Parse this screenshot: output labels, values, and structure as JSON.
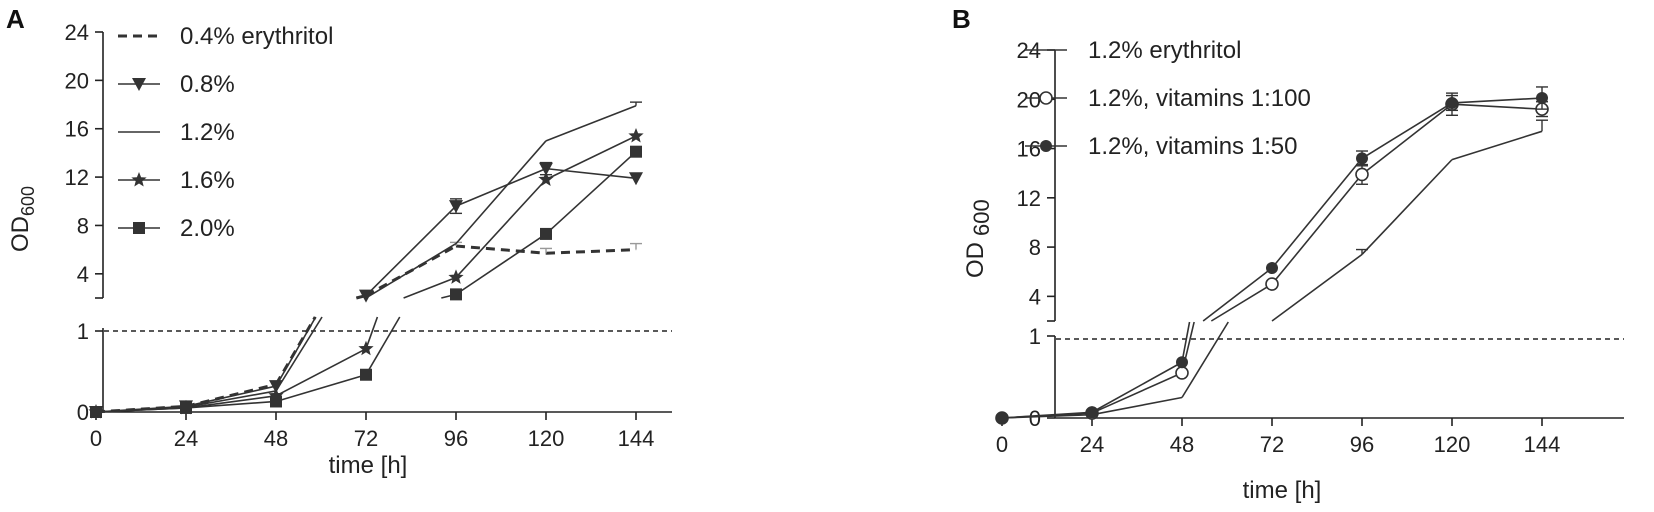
{
  "colors": {
    "ink": "#333333",
    "dashed": "#333333",
    "grey_err": "#999999"
  },
  "chart_data": [
    {
      "type": "line",
      "panel": "A",
      "xlabel": "time [h]",
      "ylabel_main": "OD",
      "ylabel_sub": "600",
      "x_ticks": [
        0,
        24,
        48,
        72,
        96,
        120,
        144
      ],
      "y_ticks_lower": [
        0,
        1
      ],
      "y_ticks_upper": [
        4,
        8,
        12,
        16,
        20,
        24
      ],
      "xlim": [
        0,
        144
      ],
      "ylim_lower": [
        0,
        1.2
      ],
      "ylim_upper": [
        2,
        24
      ],
      "series": [
        {
          "name": "0.4% erythritol",
          "marker": "none",
          "dashed": true,
          "x": [
            0,
            24,
            48,
            72,
            96,
            120,
            144
          ],
          "y": [
            0,
            0.07,
            0.34,
            2.2,
            6.3,
            5.7,
            6.0
          ],
          "err": [
            0,
            0,
            0,
            0,
            0.3,
            0.4,
            0.5
          ]
        },
        {
          "name": "0.8%",
          "marker": "triangle-down",
          "dashed": false,
          "x": [
            0,
            24,
            48,
            72,
            96,
            120,
            144
          ],
          "y": [
            0,
            0.07,
            0.32,
            2.2,
            9.6,
            12.7,
            11.9
          ],
          "err": [
            0,
            0,
            0,
            0,
            0.6,
            0.5,
            0
          ]
        },
        {
          "name": "1.2%",
          "marker": "none",
          "dashed": false,
          "x": [
            0,
            24,
            48,
            72,
            96,
            120,
            144
          ],
          "y": [
            0,
            0.06,
            0.26,
            2.0,
            6.5,
            15.0,
            17.9
          ],
          "err": [
            0,
            0,
            0,
            0,
            0,
            0,
            0.3
          ]
        },
        {
          "name": "1.6%",
          "marker": "star",
          "dashed": false,
          "x": [
            0,
            24,
            48,
            72,
            96,
            120,
            144
          ],
          "y": [
            0,
            0.05,
            0.2,
            0.78,
            3.7,
            11.8,
            15.4
          ],
          "err": [
            0,
            0,
            0,
            0,
            0,
            0,
            0
          ]
        },
        {
          "name": "2.0%",
          "marker": "square",
          "dashed": false,
          "x": [
            0,
            24,
            48,
            72,
            96,
            120,
            144
          ],
          "y": [
            0,
            0.05,
            0.13,
            0.46,
            2.3,
            7.3,
            14.1
          ],
          "err": [
            0,
            0,
            0,
            0,
            0,
            0,
            0
          ]
        }
      ]
    },
    {
      "type": "line",
      "panel": "B",
      "xlabel": "time [h]",
      "ylabel_main": "OD",
      "ylabel_sub": "600",
      "x_ticks": [
        0,
        24,
        48,
        72,
        96,
        120,
        144
      ],
      "y_ticks_lower": [
        0,
        1
      ],
      "y_ticks_upper": [
        4,
        8,
        12,
        16,
        20,
        24
      ],
      "xlim": [
        0,
        144
      ],
      "ylim_lower": [
        0,
        1.2
      ],
      "ylim_upper": [
        2,
        24
      ],
      "series": [
        {
          "name": "1.2% erythritol",
          "marker": "none",
          "dashed": false,
          "x": [
            0,
            24,
            48,
            72,
            96,
            120,
            144
          ],
          "y": [
            0,
            0.04,
            0.25,
            2.0,
            7.4,
            15.1,
            17.4
          ],
          "err": [
            0,
            0,
            0,
            0,
            0.4,
            0,
            0.9
          ]
        },
        {
          "name": "1.2%, vitamins  1:100",
          "marker": "circle-open",
          "dashed": false,
          "x": [
            0,
            24,
            48,
            72,
            96,
            120,
            144
          ],
          "y": [
            0,
            0.06,
            0.55,
            5.0,
            13.9,
            19.6,
            19.2
          ],
          "err": [
            0,
            0,
            0,
            0,
            0.8,
            0.9,
            0.6
          ]
        },
        {
          "name": "1.2%, vitamins 1:50",
          "marker": "circle-filled",
          "dashed": false,
          "x": [
            0,
            24,
            48,
            72,
            96,
            120,
            144
          ],
          "y": [
            0,
            0.07,
            0.68,
            6.3,
            15.2,
            19.7,
            20.1
          ],
          "err": [
            0,
            0,
            0,
            0,
            0.6,
            0.6,
            0.9
          ]
        }
      ]
    }
  ]
}
